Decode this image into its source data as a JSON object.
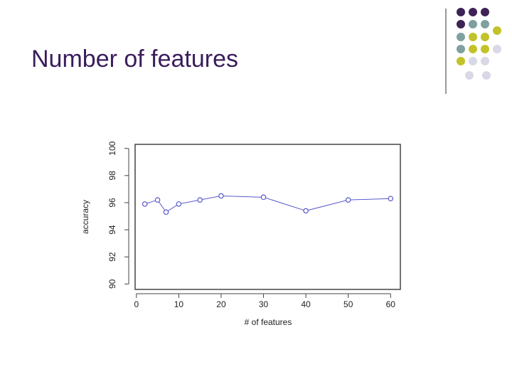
{
  "slide_title": "Number of features",
  "chart_data": {
    "type": "line",
    "x": [
      2,
      5,
      7,
      10,
      15,
      20,
      30,
      40,
      50,
      60
    ],
    "values": [
      95.9,
      96.2,
      95.3,
      95.9,
      96.2,
      96.5,
      96.4,
      95.4,
      96.2,
      96.3
    ],
    "color": "#5a5acd",
    "x_label": "# of features",
    "y_label": "accuracy",
    "xlim": [
      -0.3,
      62.3
    ],
    "ylim": [
      89.6,
      100.3
    ],
    "xticks": [
      0,
      10,
      20,
      30,
      40,
      50,
      60
    ],
    "yticks": [
      90,
      92,
      94,
      96,
      98,
      100
    ]
  }
}
